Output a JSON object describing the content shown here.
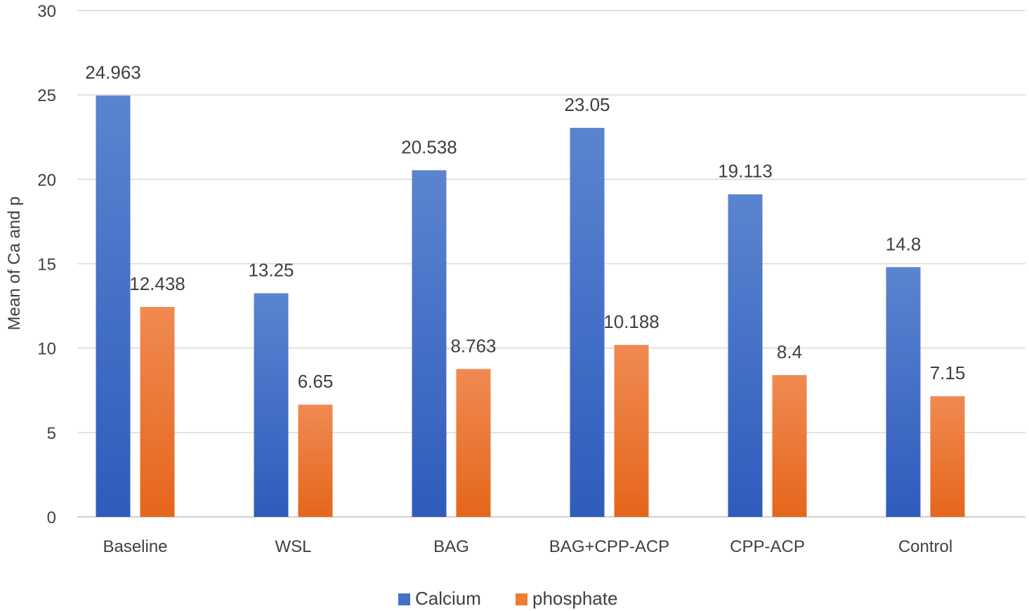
{
  "chart_data": {
    "type": "bar",
    "title": "",
    "xlabel": "",
    "ylabel": "Mean of Ca and p",
    "ylim": [
      0,
      30
    ],
    "yticks": [
      0,
      5,
      10,
      15,
      20,
      25,
      30
    ],
    "grid": true,
    "legend_position": "bottom",
    "categories": [
      "Baseline",
      "WSL",
      "BAG",
      "BAG+CPP-ACP",
      "CPP-ACP",
      "Control"
    ],
    "series": [
      {
        "name": "Calcium",
        "color": "#4472c4",
        "values": [
          24.963,
          13.25,
          20.538,
          23.05,
          19.113,
          14.8
        ],
        "labels": [
          "24.963",
          "13.25",
          "20.538",
          "23.05",
          "19.113",
          "14.8"
        ]
      },
      {
        "name": "phosphate",
        "color": "#ed7d31",
        "values": [
          12.438,
          6.65,
          8.763,
          10.188,
          8.4,
          7.15
        ],
        "labels": [
          "12.438",
          "6.65",
          "8.763",
          "10.188",
          "8.4",
          "7.15"
        ]
      }
    ]
  }
}
